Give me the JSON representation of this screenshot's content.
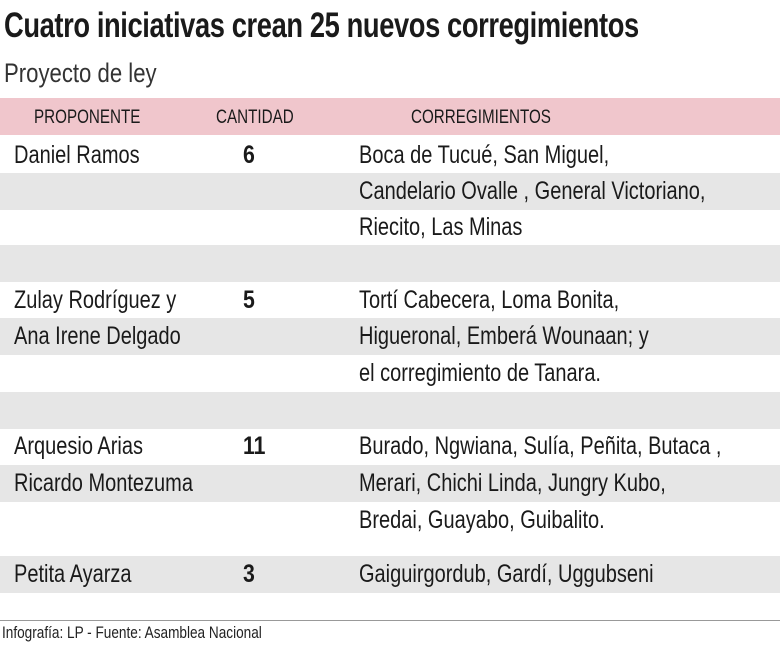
{
  "title": "Cuatro iniciativas crean 25 nuevos corregimientos",
  "subtitle": "Proyecto de ley",
  "columns": [
    "PROPONENTE",
    "CANTIDAD",
    "CORREGIMIENTOS"
  ],
  "lines": [
    {
      "p": "Daniel Ramos",
      "n": "6",
      "c": "Boca de Tucué,  San Miguel,"
    },
    {
      "p": "",
      "n": "",
      "c": "Candelario Ovalle , General Victoriano,"
    },
    {
      "p": "",
      "n": "",
      "c": "Riecito, Las Minas"
    },
    {
      "p": "",
      "n": "",
      "c": ""
    },
    {
      "p": "Zulay Rodríguez y",
      "n": "5",
      "c": "Tortí Cabecera, Loma Bonita,"
    },
    {
      "p": "Ana Irene Delgado",
      "n": "",
      "c": "Higueronal,  Emberá Wounaan; y"
    },
    {
      "p": "",
      "n": "",
      "c": "el corregimiento de Tanara."
    },
    {
      "p": "",
      "n": "",
      "c": ""
    },
    {
      "p": "Arquesio Arias",
      "n": "11",
      "c": "Burado, Ngwiana,  Sulía, Peñita, Butaca ,"
    },
    {
      "p": "Ricardo Montezuma",
      "n": "",
      "c": "Merari, Chichi Linda, Jungry Kubo,"
    },
    {
      "p": "",
      "n": "",
      "c": "Bredai, Guayabo, Guibalito."
    },
    {
      "p": "Petita Ayarza",
      "n": "3",
      "c": "Gaiguirgordub, Gardí, Uggubseni"
    }
  ],
  "footer": "Infografía: LP - Fuente: Asamblea Nacional",
  "colors": {
    "header_bg": "#f0c6cc",
    "stripe": "#e6e6e6"
  }
}
